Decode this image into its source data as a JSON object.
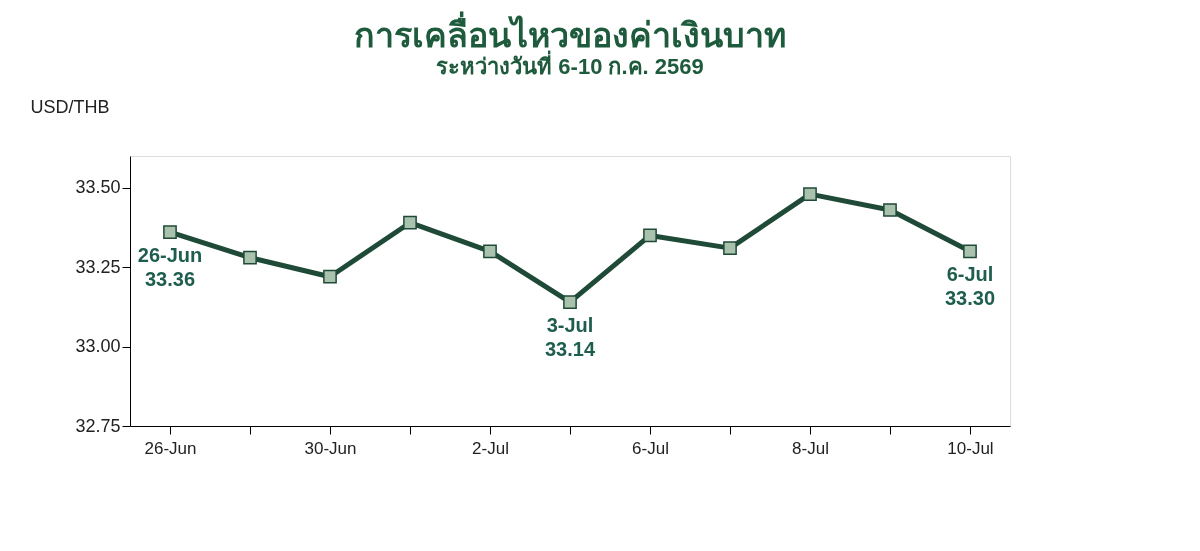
{
  "chart_data": {
    "type": "line",
    "title": "การเคลื่อนไหวของค่าเงินบาท",
    "subtitle": "ระหว่างวันที่ 6-10 ก.ค. 2569",
    "ylabel": "USD/THB",
    "categories": [
      "26-Jun",
      null,
      "30-Jun",
      null,
      "2-Jul",
      null,
      "6-Jul",
      null,
      "8-Jul",
      null,
      "10-Jul"
    ],
    "series": [
      {
        "color": "#1f4a37",
        "values": [
          33.36,
          33.28,
          33.22,
          33.39,
          33.3,
          33.14,
          33.35,
          33.31,
          33.48,
          33.43,
          33.3
        ],
        "value_labels": [
          "26-Jun\n33.36",
          null,
          null,
          null,
          null,
          "3-Jul\n33.14",
          null,
          null,
          null,
          null,
          "6-Jul\n33.30"
        ]
      }
    ],
    "ylim": [
      32.75,
      33.6
    ],
    "yticks": [
      {
        "value": 32.75,
        "label": "32.75"
      },
      {
        "value": 33.0,
        "label": "33.00"
      },
      {
        "value": 33.25,
        "label": "33.25"
      },
      {
        "value": 33.5,
        "label": "33.50"
      }
    ],
    "marker": "square",
    "line_style": "solid",
    "grid": false
  }
}
